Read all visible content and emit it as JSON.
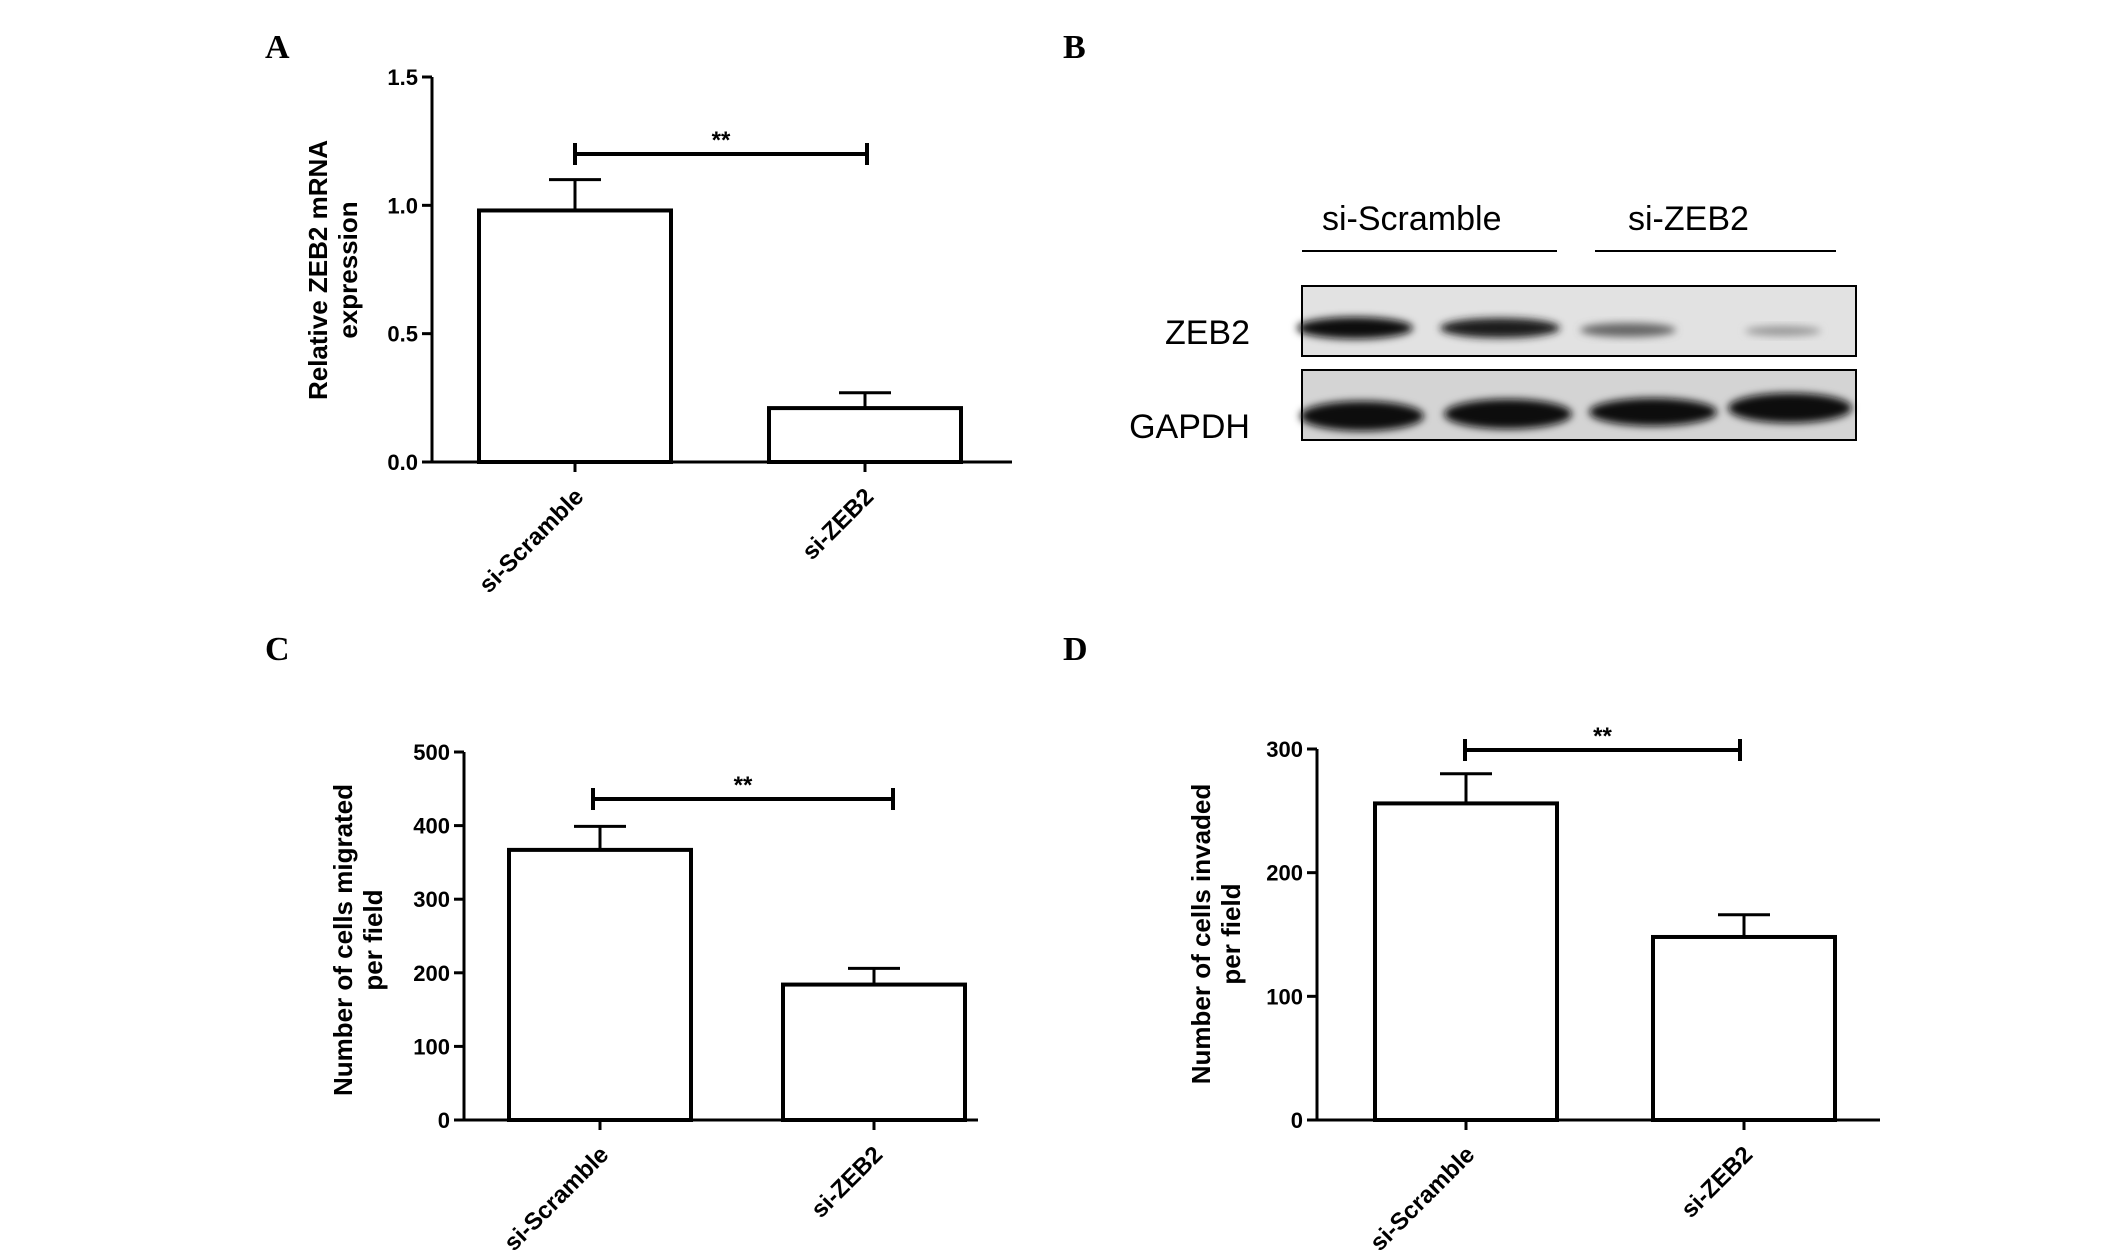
{
  "panels": {
    "A": "A",
    "B": "B",
    "C": "C",
    "D": "D"
  },
  "chart_data": [
    {
      "panel": "A",
      "type": "bar",
      "categories": [
        "si-Scramble",
        "si-ZEB2"
      ],
      "values": [
        0.98,
        0.21
      ],
      "errors": [
        0.12,
        0.06
      ],
      "ylabel": [
        "Relative ZEB2 mRNA",
        "expression"
      ],
      "ylim": [
        0,
        1.5
      ],
      "yticks": [
        "0.0",
        "0.5",
        "1.0",
        "1.5"
      ],
      "ytick_values": [
        0,
        0.5,
        1.0,
        1.5
      ],
      "significance": "**"
    },
    {
      "panel": "C",
      "type": "bar",
      "categories": [
        "si-Scramble",
        "si-ZEB2"
      ],
      "values": [
        367,
        184
      ],
      "errors": [
        32,
        22
      ],
      "ylabel": [
        "Number of cells migrated",
        "per field"
      ],
      "ylim": [
        0,
        500
      ],
      "yticks": [
        "0",
        "100",
        "200",
        "300",
        "400",
        "500"
      ],
      "ytick_values": [
        0,
        100,
        200,
        300,
        400,
        500
      ],
      "significance": "**"
    },
    {
      "panel": "D",
      "type": "bar",
      "categories": [
        "si-Scramble",
        "si-ZEB2"
      ],
      "values": [
        256,
        148
      ],
      "errors": [
        24,
        18
      ],
      "ylabel": [
        "Number of cells invaded",
        "per field"
      ],
      "ylim": [
        0,
        300
      ],
      "yticks": [
        "0",
        "100",
        "200",
        "300"
      ],
      "ytick_values": [
        0,
        100,
        200,
        300
      ],
      "significance": "**"
    }
  ],
  "western_blot": {
    "groups": [
      "si-Scramble",
      "si-ZEB2"
    ],
    "rows": [
      "ZEB2",
      "GAPDH"
    ]
  }
}
